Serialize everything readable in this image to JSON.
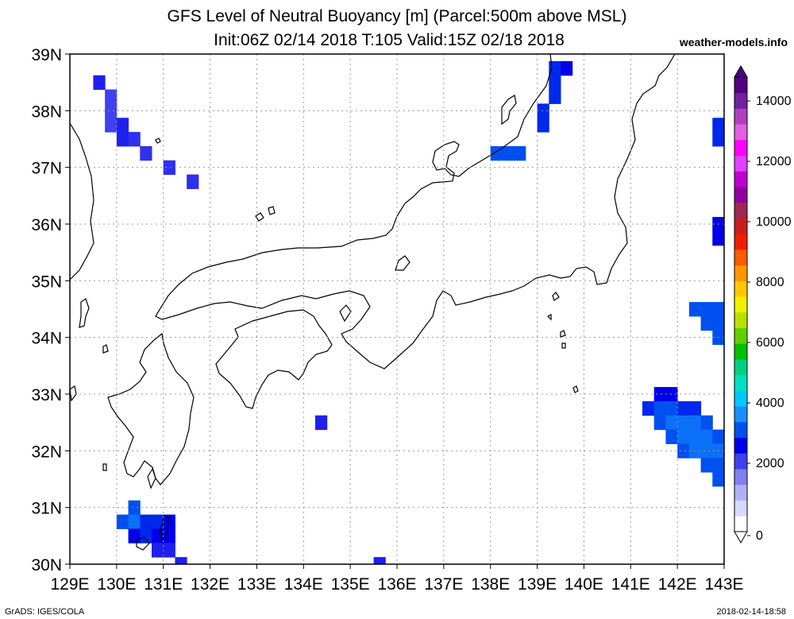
{
  "title": "GFS Level of Neutral Buoyancy [m] (Parcel:500m above MSL)",
  "subtitle": "Init:06Z 02/14 2018 T:105 Valid:15Z 02/18 2018",
  "watermark": "weather-models.info",
  "credit": "GrADS: IGES/COLA",
  "timestamp": "2018-02-14-18:58",
  "map": {
    "lon_range": [
      129,
      143
    ],
    "lat_range": [
      30,
      39
    ],
    "lon_ticks": [
      "129E",
      "130E",
      "131E",
      "132E",
      "133E",
      "134E",
      "135E",
      "136E",
      "137E",
      "138E",
      "139E",
      "140E",
      "141E",
      "142E",
      "143E"
    ],
    "lat_ticks": [
      "30N",
      "31N",
      "32N",
      "33N",
      "34N",
      "35N",
      "36N",
      "37N",
      "38N",
      "39N"
    ],
    "grid": "dotted"
  },
  "colorbar": {
    "labels": [
      "0",
      "2000",
      "4000",
      "6000",
      "8000",
      "10000",
      "12000",
      "14000"
    ],
    "colors": [
      "#ffffff",
      "#d8d8ff",
      "#b0b0f8",
      "#8080f0",
      "#4040f0",
      "#0000e8",
      "#0050f0",
      "#1a90ff",
      "#00c8ff",
      "#00e0c0",
      "#00d080",
      "#00c000",
      "#60d000",
      "#b8e000",
      "#f0f000",
      "#ffc800",
      "#ff9600",
      "#ff5a00",
      "#f01e00",
      "#c81e1e",
      "#a02850",
      "#9000a0",
      "#c000d0",
      "#e040ff",
      "#ff00ff",
      "#e060e0",
      "#b040c0",
      "#7020a0",
      "#500080"
    ]
  },
  "chart_data": {
    "type": "heatmap",
    "variable": "Level of Neutral Buoyancy",
    "unit": "m",
    "cells": [
      {
        "lon": 129.625,
        "lat": 38.5,
        "value": 1600
      },
      {
        "lon": 129.875,
        "lat": 38.25,
        "value": 1400
      },
      {
        "lon": 129.875,
        "lat": 38.0,
        "value": 1400
      },
      {
        "lon": 129.875,
        "lat": 37.75,
        "value": 1400
      },
      {
        "lon": 130.125,
        "lat": 37.75,
        "value": 1600
      },
      {
        "lon": 130.125,
        "lat": 37.5,
        "value": 1600
      },
      {
        "lon": 130.375,
        "lat": 37.5,
        "value": 1500
      },
      {
        "lon": 130.625,
        "lat": 37.25,
        "value": 1500
      },
      {
        "lon": 131.125,
        "lat": 37.0,
        "value": 1500
      },
      {
        "lon": 131.625,
        "lat": 36.75,
        "value": 1500
      },
      {
        "lon": 138.125,
        "lat": 37.25,
        "value": 2200
      },
      {
        "lon": 138.375,
        "lat": 37.25,
        "value": 2200
      },
      {
        "lon": 138.625,
        "lat": 37.25,
        "value": 2200
      },
      {
        "lon": 139.125,
        "lat": 37.75,
        "value": 2000
      },
      {
        "lon": 139.125,
        "lat": 38.0,
        "value": 2000
      },
      {
        "lon": 139.375,
        "lat": 38.25,
        "value": 2000
      },
      {
        "lon": 139.375,
        "lat": 38.5,
        "value": 2000
      },
      {
        "lon": 139.375,
        "lat": 38.75,
        "value": 2000
      },
      {
        "lon": 139.625,
        "lat": 38.75,
        "value": 1800
      },
      {
        "lon": 142.875,
        "lat": 37.5,
        "value": 2000
      },
      {
        "lon": 142.875,
        "lat": 37.75,
        "value": 2000
      },
      {
        "lon": 142.875,
        "lat": 35.75,
        "value": 1800
      },
      {
        "lon": 142.875,
        "lat": 36.0,
        "value": 1800
      },
      {
        "lon": 142.375,
        "lat": 34.5,
        "value": 2200
      },
      {
        "lon": 142.625,
        "lat": 34.5,
        "value": 2200
      },
      {
        "lon": 142.875,
        "lat": 34.5,
        "value": 2200
      },
      {
        "lon": 142.625,
        "lat": 34.25,
        "value": 2200
      },
      {
        "lon": 142.875,
        "lat": 34.25,
        "value": 2200
      },
      {
        "lon": 142.875,
        "lat": 34.0,
        "value": 2200
      },
      {
        "lon": 134.375,
        "lat": 32.5,
        "value": 1600
      },
      {
        "lon": 141.625,
        "lat": 33.0,
        "value": 1800
      },
      {
        "lon": 141.875,
        "lat": 33.0,
        "value": 1800
      },
      {
        "lon": 141.375,
        "lat": 32.75,
        "value": 2000
      },
      {
        "lon": 141.625,
        "lat": 32.75,
        "value": 2200
      },
      {
        "lon": 141.875,
        "lat": 32.75,
        "value": 2200
      },
      {
        "lon": 142.125,
        "lat": 32.75,
        "value": 2000
      },
      {
        "lon": 142.375,
        "lat": 32.75,
        "value": 2000
      },
      {
        "lon": 141.625,
        "lat": 32.5,
        "value": 2200
      },
      {
        "lon": 141.875,
        "lat": 32.5,
        "value": 2400
      },
      {
        "lon": 142.125,
        "lat": 32.5,
        "value": 2400
      },
      {
        "lon": 142.375,
        "lat": 32.5,
        "value": 2400
      },
      {
        "lon": 142.625,
        "lat": 32.5,
        "value": 2200
      },
      {
        "lon": 141.875,
        "lat": 32.25,
        "value": 2200
      },
      {
        "lon": 142.125,
        "lat": 32.25,
        "value": 2400
      },
      {
        "lon": 142.375,
        "lat": 32.25,
        "value": 2400
      },
      {
        "lon": 142.625,
        "lat": 32.25,
        "value": 2400
      },
      {
        "lon": 142.875,
        "lat": 32.25,
        "value": 2200
      },
      {
        "lon": 142.125,
        "lat": 32.0,
        "value": 2200
      },
      {
        "lon": 142.375,
        "lat": 32.0,
        "value": 2400
      },
      {
        "lon": 142.625,
        "lat": 32.0,
        "value": 2400
      },
      {
        "lon": 142.875,
        "lat": 32.0,
        "value": 2400
      },
      {
        "lon": 142.625,
        "lat": 31.75,
        "value": 2200
      },
      {
        "lon": 142.875,
        "lat": 31.75,
        "value": 2200
      },
      {
        "lon": 142.875,
        "lat": 31.5,
        "value": 2200
      },
      {
        "lon": 130.375,
        "lat": 31.0,
        "value": 2200
      },
      {
        "lon": 130.125,
        "lat": 30.75,
        "value": 2200
      },
      {
        "lon": 130.375,
        "lat": 30.75,
        "value": 2400
      },
      {
        "lon": 130.625,
        "lat": 30.75,
        "value": 2000
      },
      {
        "lon": 130.875,
        "lat": 30.75,
        "value": 2000
      },
      {
        "lon": 131.125,
        "lat": 30.75,
        "value": 1800
      },
      {
        "lon": 130.375,
        "lat": 30.5,
        "value": 1800
      },
      {
        "lon": 130.625,
        "lat": 30.5,
        "value": 2000
      },
      {
        "lon": 130.875,
        "lat": 30.5,
        "value": 1800
      },
      {
        "lon": 131.125,
        "lat": 30.5,
        "value": 1800
      },
      {
        "lon": 130.875,
        "lat": 30.25,
        "value": 1600
      },
      {
        "lon": 131.125,
        "lat": 30.25,
        "value": 1600
      },
      {
        "lon": 131.375,
        "lat": 30.0,
        "value": 1600
      },
      {
        "lon": 135.625,
        "lat": 30.0,
        "value": 1600
      }
    ]
  }
}
